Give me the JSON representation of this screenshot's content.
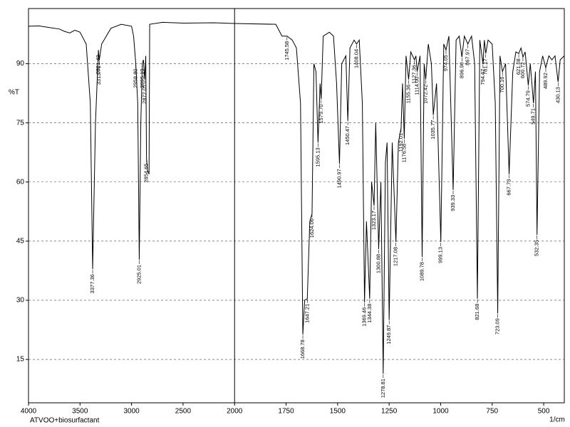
{
  "chart_data": {
    "type": "line",
    "ylabel": "%T",
    "xlabel": "1/cm",
    "xlim": [
      4000,
      400
    ],
    "xbreak": 2000,
    "xticks": [
      4000,
      3500,
      3000,
      2500,
      2000,
      1750,
      1500,
      1250,
      1000,
      750,
      500
    ],
    "ylim": [
      4,
      104
    ],
    "yticks": [
      15,
      30,
      45,
      60,
      75,
      90
    ],
    "grid": true,
    "series": [
      {
        "name": "ATVOO+biosurfactant",
        "color": "#000000",
        "x": [
          4000,
          3900,
          3800,
          3700,
          3650,
          3600,
          3550,
          3500,
          3440,
          3400,
          3377.36,
          3350,
          3321.42,
          3313.71,
          3290,
          3200,
          3100,
          3000,
          2980,
          2958.8,
          2940,
          2925.01,
          2910,
          2895.19,
          2885,
          2872.01,
          2862,
          2854.65,
          2845,
          2830,
          2824,
          2700,
          2500,
          2200,
          2000,
          1800,
          1770,
          1745.58,
          1720,
          1700,
          1680,
          1668.78,
          1660,
          1647.21,
          1635,
          1624.06,
          1615,
          1605,
          1595.13,
          1585,
          1579.7,
          1570,
          1540,
          1520,
          1505,
          1490.97,
          1480,
          1460,
          1450.47,
          1440,
          1420,
          1408.04,
          1395,
          1380,
          1369.46,
          1360,
          1344.38,
          1335,
          1323.17,
          1315,
          1300.88,
          1290,
          1278.81,
          1268,
          1260,
          1249.87,
          1235,
          1217.08,
          1205,
          1192.01,
          1185,
          1176.58,
          1168,
          1155.36,
          1145,
          1127.36,
          1120,
          1114,
          1100,
          1089.78,
          1080,
          1072.42,
          1060,
          1045,
          1035.77,
          1020,
          999.13,
          985,
          974.05,
          960,
          939.33,
          925,
          910,
          896.9,
          885,
          867.97,
          850,
          835,
          821.68,
          810,
          794.67,
          788,
          781.17,
          770,
          750,
          735,
          723.09,
          712,
          700.16,
          685,
          667.73,
          650,
          635,
          621.08,
          610,
          600.72,
          590,
          574.79,
          565,
          549.71,
          540,
          532.35,
          520,
          505,
          489.92,
          475,
          460,
          445,
          430.13,
          420,
          400
        ],
        "values": [
          99.5,
          99.6,
          99.2,
          98.8,
          98.2,
          97.8,
          98.5,
          98,
          95,
          80,
          37.9,
          75,
          93.5,
          90.8,
          95,
          99,
          100,
          99.5,
          97,
          90,
          80,
          40.3,
          75,
          90,
          91,
          86,
          92,
          66,
          63,
          62,
          100,
          100.5,
          100.3,
          100.4,
          100.2,
          100,
          97,
          97,
          96,
          94,
          80,
          21.3,
          30,
          30.4,
          50,
          52,
          90,
          88,
          70,
          85,
          81,
          97,
          98,
          97,
          85,
          64.6,
          90,
          92,
          75.5,
          94,
          96,
          95,
          96,
          80,
          29.5,
          50,
          30.4,
          60,
          54,
          75,
          43,
          60,
          11.4,
          65,
          70,
          25,
          70,
          44.8,
          70,
          73.7,
          85,
          71,
          92,
          86,
          93,
          91,
          92,
          88,
          92,
          41,
          90,
          86,
          95,
          90,
          77,
          85,
          44.8,
          95,
          93.5,
          97,
          58,
          96,
          97,
          91.7,
          97,
          95,
          97,
          90,
          30.4,
          96,
          90,
          96,
          92.6,
          96,
          95,
          80,
          26.7,
          92,
          88,
          90,
          62,
          88,
          93,
          92.6,
          94,
          91.7,
          93,
          84.5,
          90,
          80,
          88,
          46.6,
          88,
          92,
          89,
          92,
          91,
          92,
          85.4,
          91,
          92
        ]
      }
    ],
    "peak_x": [
      3377.36,
      3321.42,
      3313.71,
      2958.8,
      2925.01,
      2895.19,
      2872.01,
      2854.65,
      1745.58,
      1668.78,
      1647.21,
      1624.06,
      1595.13,
      1579.7,
      1490.97,
      1450.47,
      1408.04,
      1369.46,
      1344.38,
      1323.17,
      1300.88,
      1278.81,
      1249.87,
      1217.08,
      1192.01,
      1176.58,
      1155.36,
      1127.36,
      1114,
      1089.78,
      1072.42,
      1035.77,
      999.13,
      974.05,
      939.33,
      896.9,
      867.97,
      821.68,
      794.67,
      781.17,
      723.09,
      700.16,
      667.73,
      621.08,
      600.72,
      574.79,
      549.71,
      532.35,
      489.92,
      430.13
    ],
    "peak_y": [
      37.9,
      93.5,
      90.8,
      90,
      40.3,
      90,
      86,
      66,
      97,
      21.3,
      30.4,
      52,
      70,
      81,
      64.6,
      75.5,
      95,
      29.5,
      30.4,
      54,
      43,
      11.4,
      25,
      44.8,
      73.7,
      71,
      86,
      91,
      88,
      41,
      86,
      77,
      44.8,
      93.5,
      58,
      91.7,
      95,
      30.4,
      90,
      92.6,
      26.7,
      88,
      62,
      92.6,
      91.7,
      84.5,
      80,
      46.6,
      89,
      85.4
    ],
    "peak_labels": [
      "3377.36",
      "3321.42",
      "3313.71",
      "2958.80",
      "2925.01",
      "2895.19",
      "2872.01",
      "2854.65",
      "1745.58",
      "1668.78",
      "1647.21",
      "1624.06",
      "1595.13",
      "1579.70",
      "1490.97",
      "1450.47",
      "1408.04",
      "1369.46",
      "1344.38",
      "1323.17",
      "1300.88",
      "1278.81",
      "1249.87",
      "1217.08",
      "1192.01",
      "1176.58",
      "1155.36",
      "1127.36",
      "1114.00",
      "1089.78",
      "1072.42",
      "1035.77",
      "999.13",
      "974.05",
      "939.33",
      "896.90",
      "867.97",
      "821.68",
      "794.67",
      "781.17",
      "723.09",
      "700.16",
      "667.73",
      "621.08",
      "600.72",
      "574.79",
      "549.71",
      "532.35",
      "489.92",
      "430.13"
    ]
  }
}
